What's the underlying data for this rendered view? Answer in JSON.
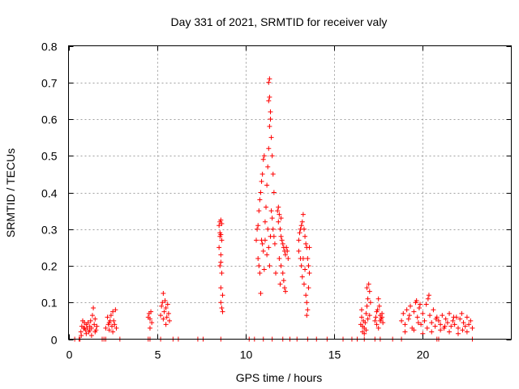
{
  "chart_data": {
    "type": "scatter",
    "title": "Day 331 of 2021, SRMTID for receiver valy",
    "xlabel": "GPS time / hours",
    "ylabel": "SRMTID / TECUs",
    "xlim": [
      0,
      25
    ],
    "ylim": [
      0,
      0.8
    ],
    "xticks": [
      0,
      5,
      10,
      15,
      20
    ],
    "xtick_labels": [
      "0",
      "5",
      "10",
      "15",
      "20"
    ],
    "yticks": [
      0,
      0.1,
      0.2,
      0.3,
      0.4,
      0.5,
      0.6,
      0.7,
      0.8
    ],
    "ytick_labels": [
      "0",
      "0.1",
      "0.2",
      "0.3",
      "0.4",
      "0.5",
      "0.6",
      "0.7",
      "0.8"
    ],
    "grid": true,
    "marker": "+",
    "marker_color": "#ff0000",
    "series": [
      {
        "name": "SRMTID",
        "points": [
          [
            0.35,
            0
          ],
          [
            0.6,
            0
          ],
          [
            0.65,
            0
          ],
          [
            1.9,
            0
          ],
          [
            2.0,
            0
          ],
          [
            2.1,
            0
          ],
          [
            2.9,
            0
          ],
          [
            4.5,
            0
          ],
          [
            4.6,
            0
          ],
          [
            5.2,
            0
          ],
          [
            5.9,
            0
          ],
          [
            6.2,
            0
          ],
          [
            7.3,
            0
          ],
          [
            7.6,
            0
          ],
          [
            8.6,
            0
          ],
          [
            10.2,
            0
          ],
          [
            10.5,
            0
          ],
          [
            11.0,
            0
          ],
          [
            11.5,
            0
          ],
          [
            12.1,
            0
          ],
          [
            12.5,
            0
          ],
          [
            12.9,
            0
          ],
          [
            13.5,
            0
          ],
          [
            14.0,
            0
          ],
          [
            14.6,
            0
          ],
          [
            15.5,
            0
          ],
          [
            16.0,
            0
          ],
          [
            16.3,
            0
          ],
          [
            16.7,
            0
          ],
          [
            17.3,
            0
          ],
          [
            17.6,
            0
          ],
          [
            18.3,
            0
          ],
          [
            18.8,
            0
          ],
          [
            20.8,
            0
          ],
          [
            20.9,
            0
          ],
          [
            22.8,
            0
          ],
          [
            0.7,
            0.02
          ],
          [
            0.75,
            0.035
          ],
          [
            0.8,
            0.05
          ],
          [
            0.85,
            0.03
          ],
          [
            0.9,
            0.045
          ],
          [
            0.95,
            0.025
          ],
          [
            1.0,
            0.04
          ],
          [
            1.05,
            0.03
          ],
          [
            1.1,
            0.045
          ],
          [
            1.15,
            0.02
          ],
          [
            1.2,
            0.035
          ],
          [
            1.25,
            0.05
          ],
          [
            1.3,
            0.03
          ],
          [
            1.35,
            0.065
          ],
          [
            1.4,
            0.085
          ],
          [
            1.45,
            0.04
          ],
          [
            1.5,
            0.055
          ],
          [
            1.55,
            0.025
          ],
          [
            1.6,
            0.035
          ],
          [
            0.72,
            0.01
          ],
          [
            1.0,
            0.015
          ],
          [
            1.3,
            0.01
          ],
          [
            1.5,
            0.02
          ],
          [
            0.9,
            0.03
          ],
          [
            1.2,
            0.025
          ],
          [
            2.1,
            0.03
          ],
          [
            2.2,
            0.06
          ],
          [
            2.25,
            0.04
          ],
          [
            2.3,
            0.025
          ],
          [
            2.35,
            0.05
          ],
          [
            2.4,
            0.065
          ],
          [
            2.45,
            0.035
          ],
          [
            2.5,
            0.075
          ],
          [
            2.55,
            0.05
          ],
          [
            2.6,
            0.04
          ],
          [
            2.65,
            0.08
          ],
          [
            2.7,
            0.03
          ],
          [
            2.3,
            0.045
          ],
          [
            2.5,
            0.02
          ],
          [
            4.5,
            0.06
          ],
          [
            4.55,
            0.07
          ],
          [
            4.6,
            0.055
          ],
          [
            4.65,
            0.075
          ],
          [
            4.7,
            0.045
          ],
          [
            4.6,
            0.03
          ],
          [
            5.2,
            0.065
          ],
          [
            5.25,
            0.09
          ],
          [
            5.3,
            0.1
          ],
          [
            5.35,
            0.125
          ],
          [
            5.4,
            0.075
          ],
          [
            5.45,
            0.105
          ],
          [
            5.5,
            0.085
          ],
          [
            5.55,
            0.06
          ],
          [
            5.6,
            0.095
          ],
          [
            5.65,
            0.07
          ],
          [
            5.7,
            0.05
          ],
          [
            5.35,
            0.055
          ],
          [
            5.5,
            0.04
          ],
          [
            8.5,
            0.31
          ],
          [
            8.55,
            0.32
          ],
          [
            8.6,
            0.325
          ],
          [
            8.65,
            0.315
          ],
          [
            8.55,
            0.28
          ],
          [
            8.6,
            0.285
          ],
          [
            8.5,
            0.25
          ],
          [
            8.6,
            0.23
          ],
          [
            8.55,
            0.2
          ],
          [
            8.65,
            0.18
          ],
          [
            8.6,
            0.14
          ],
          [
            8.7,
            0.12
          ],
          [
            8.6,
            0.1
          ],
          [
            8.65,
            0.085
          ],
          [
            8.7,
            0.075
          ],
          [
            8.55,
            0.29
          ],
          [
            8.65,
            0.27
          ],
          [
            8.6,
            0.21
          ],
          [
            10.6,
            0.27
          ],
          [
            10.65,
            0.3
          ],
          [
            10.7,
            0.31
          ],
          [
            10.75,
            0.35
          ],
          [
            10.8,
            0.38
          ],
          [
            10.85,
            0.4
          ],
          [
            10.9,
            0.43
          ],
          [
            10.95,
            0.45
          ],
          [
            11.0,
            0.49
          ],
          [
            11.05,
            0.5
          ],
          [
            10.7,
            0.22
          ],
          [
            10.75,
            0.2
          ],
          [
            10.8,
            0.18
          ],
          [
            10.85,
            0.125
          ],
          [
            10.9,
            0.27
          ],
          [
            10.95,
            0.26
          ],
          [
            11.0,
            0.24
          ],
          [
            11.05,
            0.19
          ],
          [
            11.1,
            0.32
          ],
          [
            11.15,
            0.36
          ],
          [
            11.2,
            0.42
          ],
          [
            11.25,
            0.47
          ],
          [
            11.3,
            0.52
          ],
          [
            11.35,
            0.58
          ],
          [
            11.4,
            0.6
          ],
          [
            11.45,
            0.55
          ],
          [
            11.5,
            0.5
          ],
          [
            11.55,
            0.45
          ],
          [
            11.6,
            0.4
          ],
          [
            11.3,
            0.65
          ],
          [
            11.35,
            0.66
          ],
          [
            11.3,
            0.7
          ],
          [
            11.35,
            0.71
          ],
          [
            11.4,
            0.62
          ],
          [
            11.25,
            0.3
          ],
          [
            11.3,
            0.25
          ],
          [
            11.35,
            0.2
          ],
          [
            11.4,
            0.28
          ],
          [
            11.45,
            0.35
          ],
          [
            11.5,
            0.33
          ],
          [
            11.55,
            0.3
          ],
          [
            11.6,
            0.28
          ],
          [
            11.65,
            0.26
          ],
          [
            11.7,
            0.18
          ],
          [
            11.2,
            0.23
          ],
          [
            11.1,
            0.27
          ],
          [
            11.8,
            0.35
          ],
          [
            11.85,
            0.36
          ],
          [
            11.9,
            0.34
          ],
          [
            11.95,
            0.3
          ],
          [
            12.0,
            0.28
          ],
          [
            12.05,
            0.27
          ],
          [
            12.1,
            0.26
          ],
          [
            12.15,
            0.25
          ],
          [
            12.2,
            0.24
          ],
          [
            12.25,
            0.23
          ],
          [
            11.9,
            0.22
          ],
          [
            12.0,
            0.2
          ],
          [
            12.1,
            0.18
          ],
          [
            12.15,
            0.16
          ],
          [
            12.2,
            0.14
          ],
          [
            12.25,
            0.13
          ],
          [
            12.3,
            0.25
          ],
          [
            12.35,
            0.24
          ],
          [
            12.4,
            0.22
          ],
          [
            11.85,
            0.32
          ],
          [
            12.0,
            0.33
          ],
          [
            11.95,
            0.15
          ],
          [
            13.0,
            0.27
          ],
          [
            13.05,
            0.29
          ],
          [
            13.1,
            0.3
          ],
          [
            13.15,
            0.31
          ],
          [
            13.2,
            0.32
          ],
          [
            13.25,
            0.34
          ],
          [
            13.3,
            0.3
          ],
          [
            13.35,
            0.28
          ],
          [
            13.4,
            0.26
          ],
          [
            13.45,
            0.25
          ],
          [
            13.5,
            0.22
          ],
          [
            13.55,
            0.2
          ],
          [
            13.6,
            0.18
          ],
          [
            13.1,
            0.22
          ],
          [
            13.15,
            0.2
          ],
          [
            13.2,
            0.17
          ],
          [
            13.3,
            0.15
          ],
          [
            13.4,
            0.12
          ],
          [
            13.45,
            0.1
          ],
          [
            13.5,
            0.08
          ],
          [
            13.45,
            0.065
          ],
          [
            13.55,
            0.14
          ],
          [
            13.6,
            0.25
          ],
          [
            13.0,
            0.24
          ],
          [
            13.25,
            0.22
          ],
          [
            13.35,
            0.19
          ],
          [
            16.5,
            0.04
          ],
          [
            16.55,
            0.06
          ],
          [
            16.6,
            0.035
          ],
          [
            16.65,
            0.05
          ],
          [
            16.7,
            0.03
          ],
          [
            16.75,
            0.045
          ],
          [
            16.8,
            0.07
          ],
          [
            16.85,
            0.09
          ],
          [
            16.9,
            0.11
          ],
          [
            16.95,
            0.15
          ],
          [
            17.0,
            0.13
          ],
          [
            17.05,
            0.1
          ],
          [
            16.6,
            0.02
          ],
          [
            16.7,
            0.015
          ],
          [
            16.8,
            0.025
          ],
          [
            16.9,
            0.055
          ],
          [
            17.0,
            0.065
          ],
          [
            16.55,
            0.08
          ],
          [
            16.85,
            0.14
          ],
          [
            17.3,
            0.05
          ],
          [
            17.35,
            0.06
          ],
          [
            17.4,
            0.075
          ],
          [
            17.45,
            0.08
          ],
          [
            17.5,
            0.11
          ],
          [
            17.55,
            0.09
          ],
          [
            17.6,
            0.065
          ],
          [
            17.65,
            0.055
          ],
          [
            17.7,
            0.07
          ],
          [
            17.75,
            0.045
          ],
          [
            17.4,
            0.04
          ],
          [
            17.5,
            0.03
          ],
          [
            17.6,
            0.05
          ],
          [
            17.7,
            0.06
          ],
          [
            18.8,
            0.05
          ],
          [
            18.9,
            0.07
          ],
          [
            19.0,
            0.04
          ],
          [
            19.1,
            0.08
          ],
          [
            19.2,
            0.055
          ],
          [
            19.3,
            0.09
          ],
          [
            19.4,
            0.03
          ],
          [
            19.5,
            0.075
          ],
          [
            19.6,
            0.1
          ],
          [
            19.7,
            0.06
          ],
          [
            19.8,
            0.085
          ],
          [
            19.9,
            0.04
          ],
          [
            20.0,
            0.07
          ],
          [
            20.1,
            0.05
          ],
          [
            20.2,
            0.095
          ],
          [
            20.3,
            0.11
          ],
          [
            20.4,
            0.065
          ],
          [
            20.5,
            0.045
          ],
          [
            20.6,
            0.08
          ],
          [
            20.7,
            0.035
          ],
          [
            20.8,
            0.06
          ],
          [
            20.9,
            0.05
          ],
          [
            21.0,
            0.04
          ],
          [
            21.1,
            0.065
          ],
          [
            21.2,
            0.03
          ],
          [
            21.3,
            0.055
          ],
          [
            21.4,
            0.045
          ],
          [
            21.5,
            0.07
          ],
          [
            21.6,
            0.035
          ],
          [
            21.7,
            0.05
          ],
          [
            21.8,
            0.04
          ],
          [
            21.9,
            0.06
          ],
          [
            22.0,
            0.03
          ],
          [
            22.1,
            0.055
          ],
          [
            22.2,
            0.07
          ],
          [
            22.3,
            0.045
          ],
          [
            22.4,
            0.035
          ],
          [
            22.5,
            0.06
          ],
          [
            22.6,
            0.04
          ],
          [
            22.7,
            0.05
          ],
          [
            22.8,
            0.03
          ],
          [
            19.0,
            0.02
          ],
          [
            19.5,
            0.025
          ],
          [
            20.0,
            0.015
          ],
          [
            20.5,
            0.02
          ],
          [
            21.0,
            0.025
          ],
          [
            21.5,
            0.02
          ],
          [
            22.0,
            0.015
          ],
          [
            22.5,
            0.02
          ],
          [
            19.25,
            0.065
          ],
          [
            19.75,
            0.045
          ],
          [
            20.25,
            0.03
          ],
          [
            20.75,
            0.055
          ],
          [
            21.25,
            0.035
          ],
          [
            21.75,
            0.06
          ],
          [
            22.25,
            0.025
          ],
          [
            19.65,
            0.105
          ],
          [
            20.35,
            0.12
          ],
          [
            19.85,
            0.095
          ]
        ]
      }
    ]
  }
}
